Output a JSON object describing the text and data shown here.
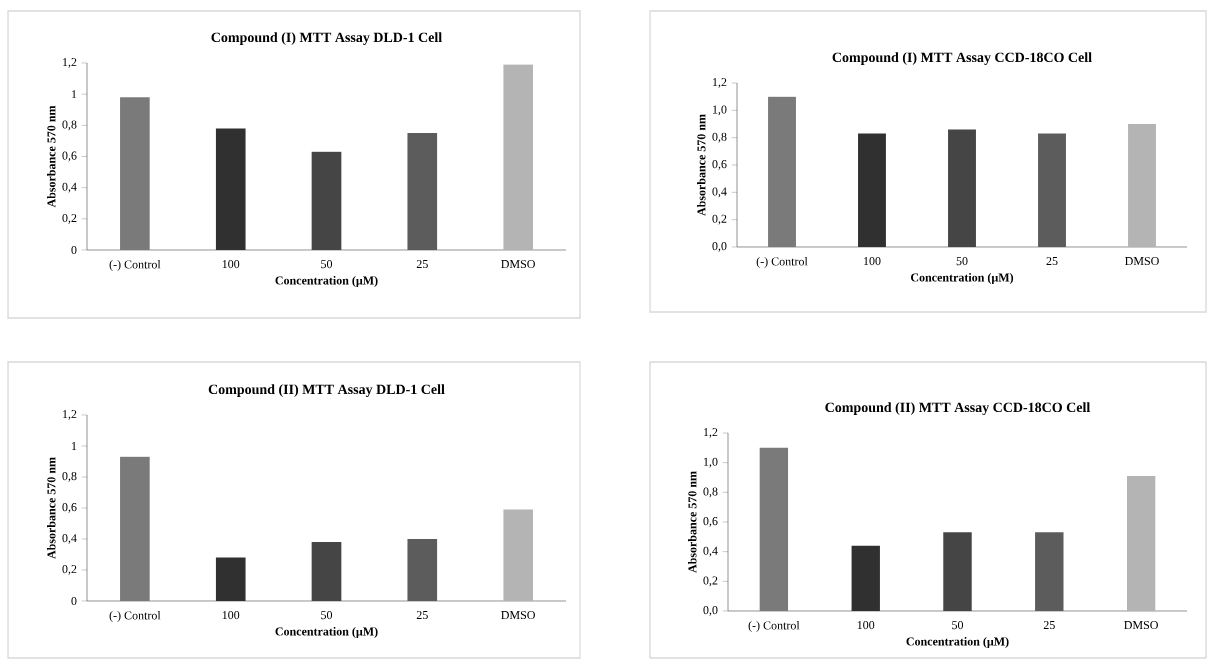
{
  "chart_data": [
    {
      "type": "bar",
      "title": "Compound (I) MTT Assay DLD-1 Cell",
      "xlabel": "Concentration (µM)",
      "ylabel": "Absorbance 570 nm",
      "categories": [
        "(-) Control",
        "100",
        "50",
        "25",
        "DMSO"
      ],
      "values": [
        0.98,
        0.78,
        0.63,
        0.75,
        1.19
      ],
      "colors": [
        "#7a7a7a",
        "#303030",
        "#454545",
        "#5c5c5c",
        "#b4b4b4"
      ],
      "ylim": [
        0,
        1.2
      ],
      "yticks": [
        0,
        {
          "value": 0.2,
          "label": "0,2"
        },
        {
          "value": 0.4,
          "label": "0,4"
        },
        {
          "value": 0.6,
          "label": "0,6"
        },
        {
          "value": 0.8,
          "label": "0,8"
        },
        1,
        {
          "value": 1.2,
          "label": "1,2"
        }
      ]
    },
    {
      "type": "bar",
      "title": "Compound (I) MTT Assay CCD-18CO Cell",
      "xlabel": "Concentration (µM)",
      "ylabel": "Absorbance 570 nm",
      "categories": [
        "(-) Control",
        "100",
        "50",
        "25",
        "DMSO"
      ],
      "values": [
        1.1,
        0.83,
        0.86,
        0.83,
        0.9
      ],
      "colors": [
        "#7a7a7a",
        "#303030",
        "#454545",
        "#5c5c5c",
        "#b4b4b4"
      ],
      "ylim": [
        0,
        1.2
      ],
      "yticks": [
        {
          "value": 0,
          "label": "0,0"
        },
        {
          "value": 0.2,
          "label": "0,2"
        },
        {
          "value": 0.4,
          "label": "0,4"
        },
        {
          "value": 0.6,
          "label": "0,6"
        },
        {
          "value": 0.8,
          "label": "0,8"
        },
        {
          "value": 1,
          "label": "1,0"
        },
        {
          "value": 1.2,
          "label": "1,2"
        }
      ]
    },
    {
      "type": "bar",
      "title": "Compound (II) MTT Assay DLD-1 Cell",
      "xlabel": "Concentration (µM)",
      "ylabel": "Absorbance 570 nm",
      "categories": [
        "(-) Control",
        "100",
        "50",
        "25",
        "DMSO"
      ],
      "values": [
        0.93,
        0.28,
        0.38,
        0.4,
        0.59
      ],
      "colors": [
        "#7a7a7a",
        "#303030",
        "#454545",
        "#5c5c5c",
        "#b4b4b4"
      ],
      "ylim": [
        0,
        1.2
      ],
      "yticks": [
        0,
        {
          "value": 0.2,
          "label": "0,2"
        },
        {
          "value": 0.4,
          "label": "0,4"
        },
        {
          "value": 0.6,
          "label": "0,6"
        },
        {
          "value": 0.8,
          "label": "0,8"
        },
        1,
        {
          "value": 1.2,
          "label": "1,2"
        }
      ]
    },
    {
      "type": "bar",
      "title": "Compound (II) MTT Assay CCD-18CO Cell",
      "xlabel": "Concentration (µM)",
      "ylabel": "Absorbance 570 nm",
      "categories": [
        "(-) Control",
        "100",
        "50",
        "25",
        "DMSO"
      ],
      "values": [
        1.1,
        0.44,
        0.53,
        0.53,
        0.91
      ],
      "colors": [
        "#7a7a7a",
        "#303030",
        "#454545",
        "#5c5c5c",
        "#b4b4b4"
      ],
      "ylim": [
        0,
        1.2
      ],
      "yticks": [
        {
          "value": 0,
          "label": "0,0"
        },
        {
          "value": 0.2,
          "label": "0,2"
        },
        {
          "value": 0.4,
          "label": "0,4"
        },
        {
          "value": 0.6,
          "label": "0,6"
        },
        {
          "value": 0.8,
          "label": "0,8"
        },
        {
          "value": 1,
          "label": "1,0"
        },
        {
          "value": 1.2,
          "label": "1,2"
        }
      ]
    }
  ]
}
